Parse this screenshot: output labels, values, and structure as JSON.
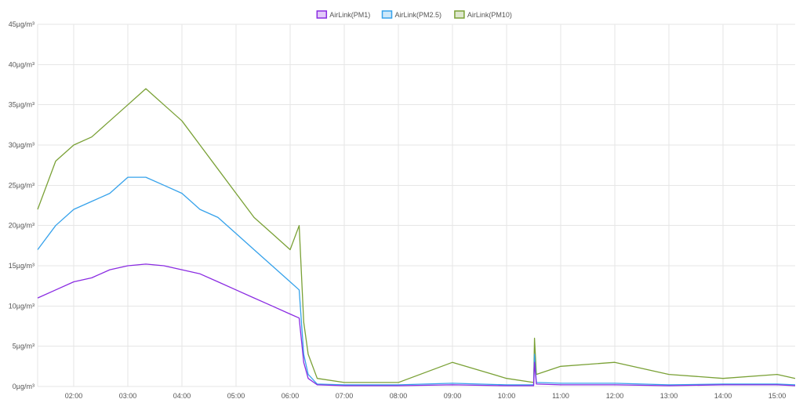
{
  "chart_data": {
    "type": "line",
    "title": "",
    "xlabel": "",
    "ylabel": "",
    "ylim": [
      0,
      45
    ],
    "y_ticks": [
      "0µg/m³",
      "5µg/m³",
      "10µg/m³",
      "15µg/m³",
      "20µg/m³",
      "25µg/m³",
      "30µg/m³",
      "35µg/m³",
      "40µg/m³",
      "45µg/m³"
    ],
    "y_tick_values": [
      0,
      5,
      10,
      15,
      20,
      25,
      30,
      35,
      40,
      45
    ],
    "x_range": [
      "01:20",
      "15:20"
    ],
    "x_ticks": [
      "02:00",
      "03:00",
      "04:00",
      "05:00",
      "06:00",
      "07:00",
      "08:00",
      "09:00",
      "10:00",
      "11:00",
      "12:00",
      "13:00",
      "14:00",
      "15:00"
    ],
    "grid": true,
    "legend_position": "top-center",
    "series": [
      {
        "name": "AirLink(PM1)",
        "color": "#8a2be2",
        "x": [
          "01:20",
          "01:40",
          "02:00",
          "02:20",
          "02:40",
          "03:00",
          "03:20",
          "03:40",
          "04:00",
          "04:20",
          "04:40",
          "05:00",
          "05:20",
          "05:40",
          "06:00",
          "06:10",
          "06:15",
          "06:20",
          "06:30",
          "07:00",
          "08:00",
          "09:00",
          "10:00",
          "10:30",
          "10:31",
          "10:33",
          "11:00",
          "12:00",
          "13:00",
          "14:00",
          "15:00",
          "15:20"
        ],
        "values": [
          11,
          12,
          13,
          13.5,
          14.5,
          15,
          15.2,
          15,
          14.5,
          14,
          13,
          12,
          11,
          10,
          9,
          8.5,
          3,
          1,
          0.2,
          0.1,
          0.1,
          0.2,
          0.1,
          0.1,
          3,
          0.3,
          0.2,
          0.2,
          0.1,
          0.2,
          0.2,
          0.1
        ]
      },
      {
        "name": "AirLink(PM2.5)",
        "color": "#36a2eb",
        "x": [
          "01:20",
          "01:40",
          "02:00",
          "02:20",
          "02:40",
          "03:00",
          "03:20",
          "03:40",
          "04:00",
          "04:20",
          "04:40",
          "05:00",
          "05:20",
          "05:40",
          "06:00",
          "06:10",
          "06:15",
          "06:20",
          "06:30",
          "07:00",
          "08:00",
          "09:00",
          "10:00",
          "10:30",
          "10:31",
          "10:33",
          "11:00",
          "12:00",
          "13:00",
          "14:00",
          "15:00",
          "15:20"
        ],
        "values": [
          17,
          20,
          22,
          23,
          24,
          26,
          26,
          25,
          24,
          22,
          21,
          19,
          17,
          15,
          13,
          12,
          4,
          1.5,
          0.3,
          0.2,
          0.2,
          0.4,
          0.2,
          0.2,
          4,
          0.5,
          0.4,
          0.4,
          0.2,
          0.3,
          0.3,
          0.2
        ]
      },
      {
        "name": "AirLink(PM10)",
        "color": "#7aa136",
        "x": [
          "01:20",
          "01:40",
          "02:00",
          "02:20",
          "02:40",
          "03:00",
          "03:20",
          "03:40",
          "04:00",
          "04:20",
          "04:40",
          "05:00",
          "05:20",
          "05:40",
          "06:00",
          "06:10",
          "06:15",
          "06:20",
          "06:30",
          "07:00",
          "08:00",
          "09:00",
          "10:00",
          "10:30",
          "10:31",
          "10:33",
          "11:00",
          "12:00",
          "13:00",
          "14:00",
          "15:00",
          "15:20"
        ],
        "values": [
          22,
          28,
          30,
          31,
          33,
          35,
          37,
          35,
          33,
          30,
          27,
          24,
          21,
          19,
          17,
          20,
          8,
          4,
          1,
          0.5,
          0.5,
          3,
          1,
          0.5,
          6,
          1.5,
          2.5,
          3,
          1.5,
          1,
          1.5,
          1
        ]
      }
    ]
  }
}
